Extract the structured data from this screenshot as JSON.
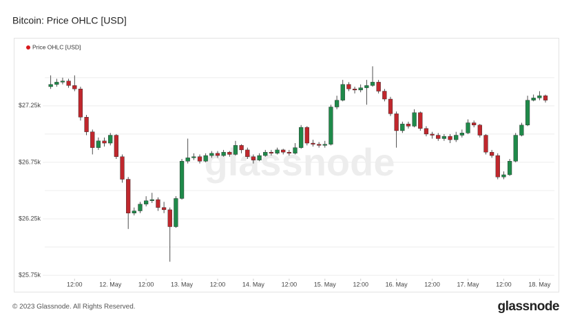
{
  "title": "Bitcoin: Price OHLC [USD]",
  "footer": "© 2023 Glassnode. All Rights Reserved.",
  "logo": "glassnode",
  "chart_data": {
    "type": "candlestick",
    "legend": "Price OHLC [USD]",
    "legend_color": "#d7191c",
    "legend_position": "top-left",
    "watermark": "glassnode",
    "up_color": "#1f8a4a",
    "down_color": "#c0272d",
    "x": [
      "11. May 04:00",
      "11. May 06:00",
      "11. May 08:00",
      "11. May 10:00",
      "11. May 12:00",
      "11. May 14:00",
      "11. May 16:00",
      "11. May 18:00",
      "11. May 20:00",
      "11. May 22:00",
      "12. May 00:00",
      "12. May 02:00",
      "12. May 04:00",
      "12. May 06:00",
      "12. May 08:00",
      "12. May 10:00",
      "12. May 12:00",
      "12. May 14:00",
      "12. May 16:00",
      "12. May 18:00",
      "12. May 20:00",
      "12. May 22:00",
      "13. May 00:00",
      "13. May 02:00",
      "13. May 04:00",
      "13. May 06:00",
      "13. May 08:00",
      "13. May 10:00",
      "13. May 12:00",
      "13. May 14:00",
      "13. May 16:00",
      "13. May 18:00",
      "13. May 20:00",
      "13. May 22:00",
      "14. May 00:00",
      "14. May 02:00",
      "14. May 04:00",
      "14. May 06:00",
      "14. May 08:00",
      "14. May 10:00",
      "14. May 12:00",
      "14. May 14:00",
      "14. May 16:00",
      "14. May 18:00",
      "14. May 20:00",
      "14. May 22:00",
      "15. May 00:00",
      "15. May 02:00",
      "15. May 04:00",
      "15. May 06:00",
      "15. May 08:00",
      "15. May 10:00",
      "15. May 12:00",
      "15. May 14:00",
      "15. May 16:00",
      "15. May 18:00",
      "15. May 20:00",
      "15. May 22:00",
      "16. May 00:00",
      "16. May 02:00",
      "16. May 04:00",
      "16. May 06:00",
      "16. May 08:00",
      "16. May 10:00",
      "16. May 12:00",
      "16. May 14:00",
      "16. May 16:00",
      "16. May 18:00",
      "16. May 20:00",
      "16. May 22:00",
      "17. May 00:00",
      "17. May 02:00",
      "17. May 04:00",
      "17. May 06:00",
      "17. May 08:00",
      "17. May 10:00",
      "17. May 12:00",
      "17. May 14:00",
      "17. May 16:00",
      "17. May 18:00",
      "17. May 20:00",
      "17. May 22:00",
      "18. May 00:00",
      "18. May 02:00"
    ],
    "open": [
      27420,
      27440,
      27460,
      27470,
      27430,
      27400,
      27150,
      27020,
      26880,
      26940,
      26920,
      26990,
      26800,
      26600,
      26300,
      26320,
      26380,
      26410,
      26420,
      26350,
      26330,
      26180,
      26430,
      26760,
      26790,
      26800,
      26760,
      26810,
      26830,
      26810,
      26840,
      26820,
      26900,
      26860,
      26800,
      26770,
      26810,
      26840,
      26830,
      26860,
      26840,
      26830,
      26880,
      27060,
      26920,
      26910,
      26900,
      26910,
      27240,
      27300,
      27440,
      27400,
      27390,
      27410,
      27430,
      27460,
      27380,
      27310,
      27180,
      27030,
      27090,
      27070,
      27190,
      27050,
      27000,
      26990,
      26960,
      26980,
      26950,
      26990,
      27010,
      27100,
      27080,
      26990,
      26840,
      26810,
      26620,
      26640,
      26760,
      26990,
      27080,
      27300,
      27320,
      27340
    ],
    "high": [
      27520,
      27490,
      27500,
      27490,
      27520,
      27420,
      27170,
      27040,
      26970,
      26970,
      27010,
      27000,
      26820,
      26620,
      26350,
      26400,
      26450,
      26480,
      26440,
      26400,
      26350,
      26450,
      26780,
      26960,
      26830,
      26820,
      26830,
      26850,
      26850,
      26860,
      26850,
      26940,
      26910,
      26880,
      26820,
      26830,
      26860,
      26860,
      26880,
      26870,
      26860,
      26920,
      27080,
      27070,
      26950,
      26930,
      26940,
      27260,
      27340,
      27480,
      27460,
      27420,
      27440,
      27480,
      27600,
      27480,
      27400,
      27330,
      27200,
      27110,
      27110,
      27220,
      27200,
      27070,
      27020,
      27010,
      27000,
      27000,
      27020,
      27040,
      27130,
      27120,
      27090,
      27000,
      26860,
      26830,
      26670,
      26780,
      27010,
      27100,
      27340,
      27350,
      27380,
      27350
    ],
    "low": [
      27400,
      27420,
      27440,
      27410,
      27380,
      27120,
      26990,
      26820,
      26860,
      26890,
      26900,
      26780,
      26570,
      26160,
      26280,
      26300,
      26360,
      26390,
      26320,
      26300,
      25870,
      26170,
      26420,
      26740,
      26770,
      26740,
      26750,
      26790,
      26790,
      26800,
      26800,
      26810,
      26830,
      26780,
      26740,
      26760,
      26800,
      26810,
      26820,
      26820,
      26810,
      26820,
      26870,
      26900,
      26890,
      26880,
      26880,
      26900,
      27220,
      27290,
      27380,
      27360,
      27370,
      27260,
      27420,
      27360,
      27290,
      27160,
      26880,
      27010,
      27050,
      27060,
      27030,
      26980,
      26960,
      26940,
      26940,
      26920,
      26930,
      26970,
      27000,
      27060,
      26970,
      26820,
      26790,
      26600,
      26600,
      26630,
      26750,
      26980,
      27070,
      27290,
      27300,
      27280
    ],
    "close": [
      27440,
      27460,
      27470,
      27430,
      27400,
      27150,
      27020,
      26880,
      26940,
      26920,
      26990,
      26800,
      26600,
      26300,
      26320,
      26380,
      26410,
      26420,
      26350,
      26330,
      26180,
      26430,
      26760,
      26790,
      26800,
      26760,
      26810,
      26830,
      26810,
      26840,
      26820,
      26900,
      26860,
      26800,
      26770,
      26810,
      26840,
      26830,
      26860,
      26840,
      26830,
      26880,
      27060,
      26920,
      26910,
      26900,
      26910,
      27240,
      27300,
      27440,
      27400,
      27390,
      27410,
      27430,
      27460,
      27380,
      27310,
      27180,
      27030,
      27090,
      27070,
      27190,
      27050,
      27000,
      26990,
      26960,
      26980,
      26950,
      26990,
      27010,
      27100,
      27080,
      26990,
      26840,
      26810,
      26620,
      26640,
      26760,
      26990,
      27080,
      27300,
      27320,
      27340,
      27300
    ],
    "xlim": [
      "11. May 02:00",
      "18. May 05:00"
    ],
    "xticks": [
      {
        "value": "11. May 12:00",
        "label": "12:00"
      },
      {
        "value": "12. May 00:00",
        "label": "12. May"
      },
      {
        "value": "12. May 12:00",
        "label": "12:00"
      },
      {
        "value": "13. May 00:00",
        "label": "13. May"
      },
      {
        "value": "13. May 12:00",
        "label": "12:00"
      },
      {
        "value": "14. May 00:00",
        "label": "14. May"
      },
      {
        "value": "14. May 12:00",
        "label": "12:00"
      },
      {
        "value": "15. May 00:00",
        "label": "15. May"
      },
      {
        "value": "15. May 12:00",
        "label": "12:00"
      },
      {
        "value": "16. May 00:00",
        "label": "16. May"
      },
      {
        "value": "16. May 12:00",
        "label": "12:00"
      },
      {
        "value": "17. May 00:00",
        "label": "17. May"
      },
      {
        "value": "17. May 12:00",
        "label": "12:00"
      },
      {
        "value": "18. May 00:00",
        "label": "18. May"
      }
    ],
    "ylim": [
      25720,
      27700
    ],
    "yticks": [
      {
        "value": 25750,
        "label": "$25.75k"
      },
      {
        "value": 26250,
        "label": "$26.25k"
      },
      {
        "value": 26750,
        "label": "$26.75k"
      },
      {
        "value": 27250,
        "label": "$27.25k"
      }
    ],
    "ygrid": [
      25750,
      26000,
      26250,
      26500,
      26750,
      27000,
      27250,
      27500
    ],
    "grid": true
  }
}
